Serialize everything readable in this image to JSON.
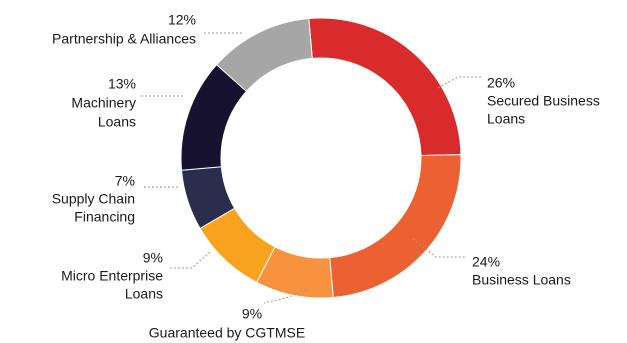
{
  "chart_data": {
    "type": "pie",
    "variant": "donut",
    "title": "",
    "legend": "none",
    "slices": [
      {
        "label": "Secured Business Loans",
        "value": 26,
        "value_label": "26%",
        "color": "#D92B2B",
        "label_lines": [
          "Secured Business",
          "Loans"
        ]
      },
      {
        "label": "Business Loans",
        "value": 24,
        "value_label": "24%",
        "color": "#EC6131",
        "label_lines": [
          "Business Loans"
        ]
      },
      {
        "label": "Guaranteed by CGTMSE",
        "value": 9,
        "value_label": "9%",
        "color": "#F7923E",
        "label_lines": [
          "Guaranteed by CGTMSE"
        ]
      },
      {
        "label": "Micro Enterprise Loans",
        "value": 9,
        "value_label": "9%",
        "color": "#F9A21D",
        "label_lines": [
          "Micro Enterprise",
          "Loans"
        ]
      },
      {
        "label": "Supply Chain Financing",
        "value": 7,
        "value_label": "7%",
        "color": "#2C2C4D",
        "label_lines": [
          "Supply Chain",
          "Financing"
        ]
      },
      {
        "label": "Machinery Loans",
        "value": 13,
        "value_label": "13%",
        "color": "#16122F",
        "label_lines": [
          "Machinery",
          "Loans"
        ]
      },
      {
        "label": "Partnership & Alliances",
        "value": 12,
        "value_label": "12%",
        "color": "#A6A6A6",
        "label_lines": [
          "Partnership & Alliances"
        ]
      }
    ]
  }
}
